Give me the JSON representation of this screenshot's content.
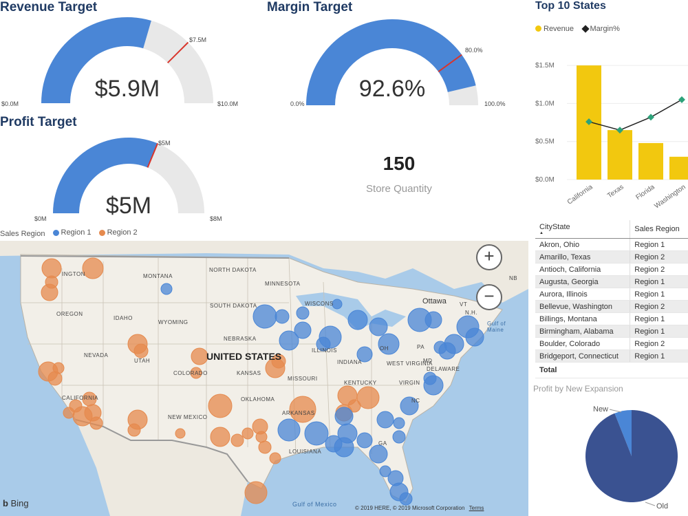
{
  "revenue": {
    "title": "Revenue Target",
    "value": "$5.9M",
    "target": "$7.5M",
    "min": "$0.0M",
    "max": "$10.0M",
    "fill": 0.59,
    "target_frac": 0.75
  },
  "margin": {
    "title": "Margin Target",
    "value": "92.6%",
    "target": "80.0%",
    "min": "0.0%",
    "max": "100.0%",
    "fill": 0.926,
    "target_frac": 0.8
  },
  "profit": {
    "title": "Profit Target",
    "value": "$5M",
    "target": "$5M",
    "min": "$0M",
    "max": "$8M",
    "fill": 0.625,
    "target_frac": 0.625
  },
  "kpi": {
    "value": "150",
    "label": "Store Quantity"
  },
  "top_states": {
    "title": "Top 10 States",
    "legend": {
      "revenue": "Revenue",
      "margin": "Margin%"
    }
  },
  "chart_data": {
    "type": "bar",
    "categories": [
      "California",
      "Texas",
      "Florida",
      "Washington"
    ],
    "series": [
      {
        "name": "Revenue",
        "values": [
          1.5,
          0.65,
          0.48,
          0.3
        ]
      },
      {
        "name": "Margin%",
        "values": [
          0.76,
          0.65,
          0.82,
          1.05
        ]
      }
    ],
    "y_ticks": [
      "$0.0M",
      "$0.5M",
      "$1.0M",
      "$1.5M"
    ],
    "ylim": [
      0,
      1.7
    ],
    "colors": {
      "revenue": "#f2c80f",
      "margin": "#2ea27a"
    }
  },
  "map": {
    "legend_title": "Sales Region",
    "legend": [
      "Region 1",
      "Region 2"
    ],
    "colors": {
      "region1": "#4a86d6",
      "region2": "#e58a4e"
    },
    "zoom_in": "+",
    "zoom_out": "−",
    "brand": "Bing",
    "copyright": "© 2019 HERE, © 2019 Microsoft Corporation",
    "terms": "Terms",
    "labels": {
      "montana": "MONTANA",
      "north_dakota": "NORTH DAKOTA",
      "minnesota": "MINNESOTA",
      "oregon": "OREGON",
      "idaho": "IDAHO",
      "wyoming": "WYOMING",
      "south_dakota": "SOUTH DAKOTA",
      "wisconsin": "WISCONS",
      "nebraska": "NEBRASKA",
      "nevada": "NEVADA",
      "utah": "UTAH",
      "colorado": "COLORADO",
      "kansas": "KANSAS",
      "missouri": "MISSOURI",
      "illinois": "ILLINOIS",
      "indiana": "INDIANA",
      "oklahoma": "OKLAHOMA",
      "arkansas": "ARKANSAS",
      "new_mexico": "NEW MEXICO",
      "california": "CALIFORNIA",
      "washington": "INGTON",
      "united_states": "UNITED STATES",
      "ottawa": "Ottawa",
      "gulf_maine": "Gulf of Maine",
      "gulf_mexico": "Gulf of Mexico",
      "louisiana": "LOUISIANA",
      "kentucky": "KENTUCKY",
      "virginia": "VIRGIN",
      "west_virginia": "WEST VIRGINIA",
      "pa": "PA",
      "oh": "OH",
      "md": "MD",
      "delaware": "DELAWARE",
      "nc": "NC",
      "nh": "N.H.",
      "vt": "VT",
      "nb": "NB",
      "ga": "GA"
    }
  },
  "table": {
    "headers": [
      "CityState",
      "Sales Region"
    ],
    "rows": [
      [
        "Akron, Ohio",
        "Region 1"
      ],
      [
        "Amarillo, Texas",
        "Region 2"
      ],
      [
        "Antioch, California",
        "Region 2"
      ],
      [
        "Augusta, Georgia",
        "Region 1"
      ],
      [
        "Aurora, Illinois",
        "Region 1"
      ],
      [
        "Bellevue, Washington",
        "Region 2"
      ],
      [
        "Billings, Montana",
        "Region 1"
      ],
      [
        "Birmingham, Alabama",
        "Region 1"
      ],
      [
        "Boulder, Colorado",
        "Region 2"
      ],
      [
        "Bridgeport, Connecticut",
        "Region 1"
      ]
    ],
    "total": "Total"
  },
  "pie": {
    "title": "Profit by New Expansion",
    "labels": [
      "New",
      "Old"
    ],
    "values": [
      0.06,
      0.94
    ],
    "colors": [
      "#4a86d6",
      "#3a5291"
    ]
  }
}
